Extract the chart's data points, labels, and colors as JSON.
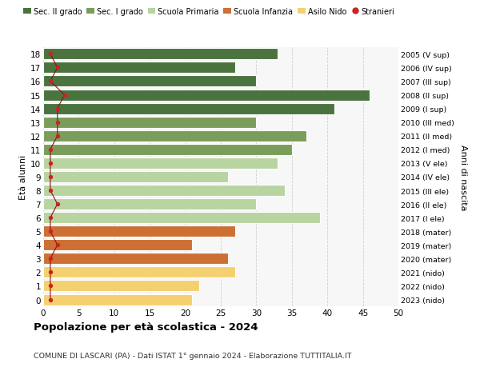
{
  "ages": [
    18,
    17,
    16,
    15,
    14,
    13,
    12,
    11,
    10,
    9,
    8,
    7,
    6,
    5,
    4,
    3,
    2,
    1,
    0
  ],
  "values": [
    33,
    27,
    30,
    46,
    41,
    30,
    37,
    35,
    33,
    26,
    34,
    30,
    39,
    27,
    21,
    26,
    27,
    22,
    21
  ],
  "right_labels": [
    "2005 (V sup)",
    "2006 (IV sup)",
    "2007 (III sup)",
    "2008 (II sup)",
    "2009 (I sup)",
    "2010 (III med)",
    "2011 (II med)",
    "2012 (I med)",
    "2013 (V ele)",
    "2014 (IV ele)",
    "2015 (III ele)",
    "2016 (II ele)",
    "2017 (I ele)",
    "2018 (mater)",
    "2019 (mater)",
    "2020 (mater)",
    "2021 (nido)",
    "2022 (nido)",
    "2023 (nido)"
  ],
  "bar_colors": [
    "#4a7340",
    "#4a7340",
    "#4a7340",
    "#4a7340",
    "#4a7340",
    "#7a9e5a",
    "#7a9e5a",
    "#7a9e5a",
    "#b8d4a0",
    "#b8d4a0",
    "#b8d4a0",
    "#b8d4a0",
    "#b8d4a0",
    "#cc7033",
    "#cc7033",
    "#cc7033",
    "#f5d070",
    "#f5d070",
    "#f5d070"
  ],
  "stranieri_values": [
    1,
    2,
    1,
    3,
    2,
    2,
    2,
    1,
    1,
    1,
    1,
    2,
    1,
    1,
    2,
    1,
    1,
    1,
    1
  ],
  "legend_labels": [
    "Sec. II grado",
    "Sec. I grado",
    "Scuola Primaria",
    "Scuola Infanzia",
    "Asilo Nido",
    "Stranieri"
  ],
  "legend_colors": [
    "#4a7340",
    "#7a9e5a",
    "#b8d4a0",
    "#cc7033",
    "#f5d070",
    "#cc2222"
  ],
  "ylabel_label": "Età alunni",
  "right_axis_label": "Anni di nascita",
  "title": "Popolazione per età scolastica - 2024",
  "subtitle": "COMUNE DI LASCARI (PA) - Dati ISTAT 1° gennaio 2024 - Elaborazione TUTTITALIA.IT",
  "xlim": [
    0,
    50
  ],
  "xticks": [
    0,
    5,
    10,
    15,
    20,
    25,
    30,
    35,
    40,
    45,
    50
  ],
  "background_color": "#f7f7f7",
  "grid_color": "#d0d0d0"
}
